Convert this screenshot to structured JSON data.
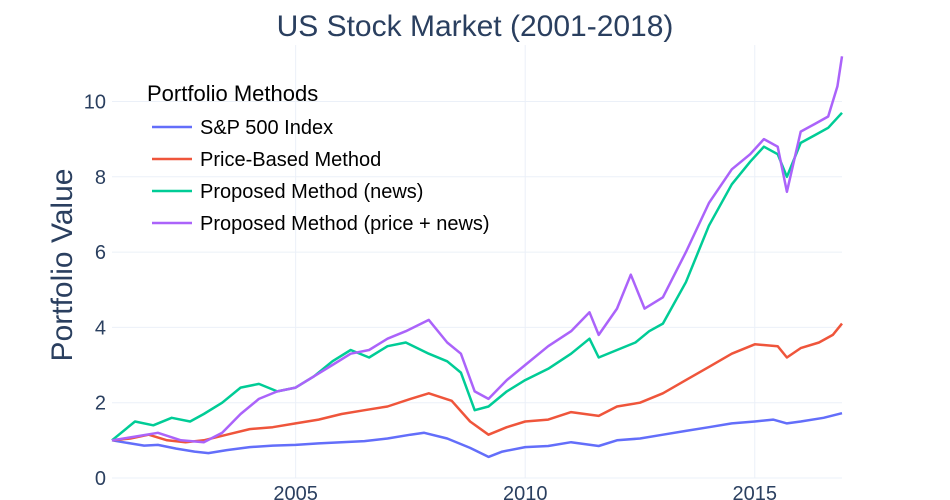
{
  "chart_data": {
    "type": "line",
    "title": "US Stock Market (2001-2018)",
    "xlabel": "",
    "ylabel": "Portfolio Value",
    "xlim": [
      2001.0,
      2016.9
    ],
    "ylim": [
      0,
      11.5
    ],
    "grid": true,
    "x_ticks": [
      {
        "value": 2005,
        "label": "2005"
      },
      {
        "value": 2010,
        "label": "2010"
      },
      {
        "value": 2015,
        "label": "2015"
      }
    ],
    "y_ticks": [
      {
        "value": 0,
        "label": "0"
      },
      {
        "value": 2,
        "label": "2"
      },
      {
        "value": 4,
        "label": "4"
      },
      {
        "value": 6,
        "label": "6"
      },
      {
        "value": 8,
        "label": "8"
      },
      {
        "value": 10,
        "label": "10"
      }
    ],
    "legend": {
      "title": "Portfolio Methods",
      "position": "top-left"
    },
    "series": [
      {
        "name": "S&P 500 Index",
        "color": "#636efa",
        "x": [
          2001.0,
          2001.4,
          2001.7,
          2002.0,
          2002.4,
          2002.8,
          2003.1,
          2003.5,
          2004.0,
          2004.5,
          2005.0,
          2005.5,
          2006.0,
          2006.5,
          2007.0,
          2007.5,
          2007.8,
          2008.3,
          2008.8,
          2009.2,
          2009.5,
          2010.0,
          2010.5,
          2011.0,
          2011.6,
          2012.0,
          2012.5,
          2013.0,
          2013.5,
          2014.0,
          2014.5,
          2015.0,
          2015.4,
          2015.7,
          2016.0,
          2016.5,
          2016.9
        ],
        "y": [
          1.0,
          0.92,
          0.86,
          0.88,
          0.78,
          0.7,
          0.66,
          0.74,
          0.82,
          0.86,
          0.88,
          0.92,
          0.95,
          0.98,
          1.05,
          1.15,
          1.2,
          1.05,
          0.8,
          0.56,
          0.7,
          0.82,
          0.85,
          0.95,
          0.85,
          1.0,
          1.05,
          1.15,
          1.25,
          1.35,
          1.45,
          1.5,
          1.55,
          1.45,
          1.5,
          1.6,
          1.72
        ]
      },
      {
        "name": "Price-Based Method",
        "color": "#ef553b",
        "x": [
          2001.0,
          2001.4,
          2001.8,
          2002.2,
          2002.6,
          2003.0,
          2003.5,
          2004.0,
          2004.5,
          2005.0,
          2005.5,
          2006.0,
          2006.5,
          2007.0,
          2007.5,
          2007.9,
          2008.4,
          2008.8,
          2009.2,
          2009.6,
          2010.0,
          2010.5,
          2011.0,
          2011.6,
          2012.0,
          2012.5,
          2013.0,
          2013.5,
          2014.0,
          2014.5,
          2015.0,
          2015.5,
          2015.7,
          2016.0,
          2016.4,
          2016.7,
          2016.9
        ],
        "y": [
          1.0,
          1.05,
          1.15,
          1.0,
          0.95,
          1.0,
          1.15,
          1.3,
          1.35,
          1.45,
          1.55,
          1.7,
          1.8,
          1.9,
          2.1,
          2.25,
          2.05,
          1.5,
          1.15,
          1.35,
          1.5,
          1.55,
          1.75,
          1.65,
          1.9,
          2.0,
          2.25,
          2.6,
          2.95,
          3.3,
          3.55,
          3.5,
          3.2,
          3.45,
          3.6,
          3.8,
          4.1
        ]
      },
      {
        "name": "Proposed Method (news)",
        "color": "#00cc96",
        "x": [
          2001.0,
          2001.5,
          2001.9,
          2002.3,
          2002.7,
          2003.0,
          2003.4,
          2003.8,
          2004.2,
          2004.6,
          2005.0,
          2005.4,
          2005.8,
          2006.2,
          2006.6,
          2007.0,
          2007.4,
          2007.9,
          2008.3,
          2008.6,
          2008.9,
          2009.2,
          2009.6,
          2010.0,
          2010.5,
          2011.0,
          2011.4,
          2011.6,
          2012.0,
          2012.4,
          2012.7,
          2013.0,
          2013.5,
          2014.0,
          2014.5,
          2014.9,
          2015.2,
          2015.5,
          2015.7,
          2016.0,
          2016.3,
          2016.6,
          2016.9
        ],
        "y": [
          1.0,
          1.5,
          1.4,
          1.6,
          1.5,
          1.7,
          2.0,
          2.4,
          2.5,
          2.3,
          2.4,
          2.7,
          3.1,
          3.4,
          3.2,
          3.5,
          3.6,
          3.3,
          3.1,
          2.8,
          1.8,
          1.9,
          2.3,
          2.6,
          2.9,
          3.3,
          3.7,
          3.2,
          3.4,
          3.6,
          3.9,
          4.1,
          5.2,
          6.7,
          7.8,
          8.4,
          8.8,
          8.6,
          8.0,
          8.9,
          9.1,
          9.3,
          9.7
        ]
      },
      {
        "name": "Proposed Method (price + news)",
        "color": "#ab63fa",
        "x": [
          2001.0,
          2001.5,
          2002.0,
          2002.5,
          2003.0,
          2003.4,
          2003.8,
          2004.2,
          2004.6,
          2005.0,
          2005.4,
          2005.8,
          2006.2,
          2006.6,
          2007.0,
          2007.4,
          2007.9,
          2008.3,
          2008.6,
          2008.9,
          2009.2,
          2009.6,
          2010.0,
          2010.5,
          2011.0,
          2011.4,
          2011.6,
          2012.0,
          2012.3,
          2012.6,
          2013.0,
          2013.5,
          2014.0,
          2014.5,
          2014.9,
          2015.2,
          2015.5,
          2015.7,
          2016.0,
          2016.3,
          2016.6,
          2016.8,
          2016.9
        ],
        "y": [
          1.0,
          1.1,
          1.2,
          1.0,
          0.95,
          1.2,
          1.7,
          2.1,
          2.3,
          2.4,
          2.7,
          3.0,
          3.3,
          3.4,
          3.7,
          3.9,
          4.2,
          3.6,
          3.3,
          2.3,
          2.1,
          2.6,
          3.0,
          3.5,
          3.9,
          4.4,
          3.8,
          4.5,
          5.4,
          4.5,
          4.8,
          6.0,
          7.3,
          8.2,
          8.6,
          9.0,
          8.8,
          7.6,
          9.2,
          9.4,
          9.6,
          10.4,
          11.2
        ]
      }
    ]
  }
}
